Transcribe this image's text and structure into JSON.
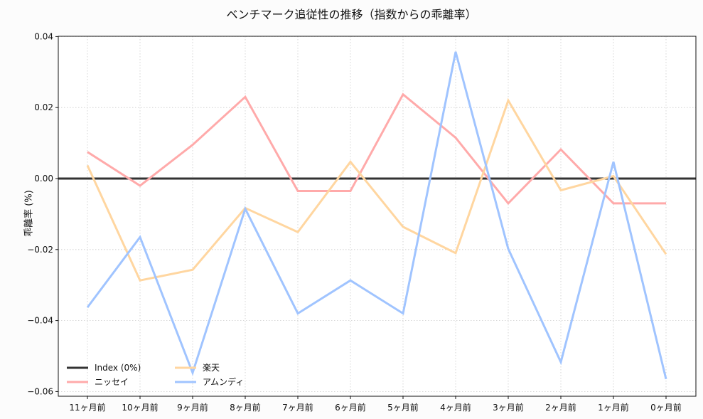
{
  "chart_data": {
    "type": "line",
    "title": "ベンチマーク追従性の推移（指数からの乖離率）",
    "xlabel": "",
    "ylabel": "乖離率 (%)",
    "ylim": [
      -0.061,
      0.0405
    ],
    "grid": true,
    "legend_position": "lower left",
    "categories": [
      "11ヶ月前",
      "10ヶ月前",
      "9ヶ月前",
      "8ヶ月前",
      "7ヶ月前",
      "6ヶ月前",
      "5ヶ月前",
      "4ヶ月前",
      "3ヶ月前",
      "2ヶ月前",
      "1ヶ月前",
      "0ヶ月前"
    ],
    "yticks": [
      "0.04",
      "0.02",
      "0.00",
      "−0.02",
      "−0.04",
      "−0.06"
    ],
    "ytick_values": [
      0.04,
      0.02,
      0.0,
      -0.02,
      -0.04,
      -0.06
    ],
    "series": [
      {
        "name": "Index (0%)",
        "color": "#333333",
        "values": [
          0,
          0,
          0,
          0,
          0,
          0,
          0,
          0,
          0,
          0,
          0,
          0
        ],
        "full_width": true
      },
      {
        "name": "ニッセイ",
        "color": "#ffaaaa",
        "values": [
          0.0075,
          -0.002,
          0.0095,
          0.023,
          -0.0035,
          -0.0035,
          0.0237,
          0.0115,
          -0.007,
          0.0082,
          -0.007,
          -0.007
        ]
      },
      {
        "name": "楽天",
        "color": "#ffd6a0",
        "values": [
          0.0037,
          -0.0287,
          -0.0257,
          -0.0083,
          -0.0151,
          0.0047,
          -0.0136,
          -0.021,
          0.022,
          -0.0033,
          0.0007,
          -0.0213
        ]
      },
      {
        "name": "アムンディ",
        "color": "#a0c4ff",
        "values": [
          -0.0363,
          -0.0165,
          -0.0547,
          -0.0085,
          -0.038,
          -0.0287,
          -0.038,
          0.0357,
          -0.0198,
          -0.0517,
          0.0047,
          -0.0565
        ]
      }
    ]
  }
}
